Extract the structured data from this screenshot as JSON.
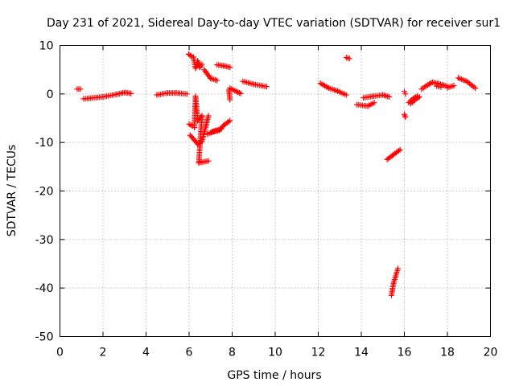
{
  "chart_data": {
    "type": "scatter",
    "title": "Day 231 of 2021, Sidereal Day-to-day VTEC variation (SDTVAR) for receiver sur1",
    "xlabel": "GPS time / hours",
    "ylabel": "SDTVAR / TECUs",
    "xlim": [
      0,
      20
    ],
    "ylim": [
      -50,
      10
    ],
    "xticks": [
      0,
      2,
      4,
      6,
      8,
      10,
      12,
      14,
      16,
      18,
      20
    ],
    "yticks": [
      10,
      0,
      -10,
      -20,
      -30,
      -40,
      -50
    ],
    "grid": true,
    "marker": "+",
    "marker_color": "#ff0000",
    "segments": [
      {
        "x": [
          0.8,
          0.95
        ],
        "y": [
          1.0,
          1.0
        ]
      },
      {
        "x": [
          1.1,
          2.0,
          2.6,
          3.0,
          3.3
        ],
        "y": [
          -1.0,
          -0.6,
          -0.1,
          0.3,
          0.1
        ]
      },
      {
        "x": [
          4.5,
          5.0,
          5.4,
          5.9
        ],
        "y": [
          -0.2,
          0.2,
          0.2,
          0.0
        ]
      },
      {
        "x": [
          5.98,
          6.1,
          6.2,
          6.3,
          6.4,
          6.5,
          6.6
        ],
        "y": [
          8.2,
          7.8,
          7.6,
          5.3,
          6.8,
          5.5,
          6.1
        ]
      },
      {
        "x": [
          6.0,
          6.15,
          6.25,
          6.3,
          6.4,
          6.6,
          6.45,
          6.9
        ],
        "y": [
          -6.2,
          -6.6,
          -6.9,
          -0.5,
          -5.5,
          -4.5,
          -14.2,
          -13.8
        ]
      },
      {
        "x": [
          6.05,
          6.4,
          6.6,
          6.9
        ],
        "y": [
          -8.5,
          -10.3,
          -9.8,
          -4.5
        ]
      },
      {
        "x": [
          6.7,
          7.0,
          7.3
        ],
        "y": [
          5.0,
          3.2,
          2.8
        ]
      },
      {
        "x": [
          6.85,
          7.1,
          7.4,
          7.6,
          7.9
        ],
        "y": [
          -8.3,
          -7.8,
          -7.5,
          -6.5,
          -5.5
        ]
      },
      {
        "x": [
          7.0,
          7.2,
          7.5
        ],
        "y": [
          -8.0,
          -7.6,
          -7.2
        ]
      },
      {
        "x": [
          7.3,
          7.6,
          7.9
        ],
        "y": [
          6.0,
          5.8,
          5.5
        ]
      },
      {
        "x": [
          7.85,
          7.9
        ],
        "y": [
          0.8,
          -1.2
        ]
      },
      {
        "x": [
          7.9,
          8.2,
          8.4
        ],
        "y": [
          1.2,
          0.5,
          0.1
        ]
      },
      {
        "x": [
          8.5,
          9.0,
          9.6
        ],
        "y": [
          2.6,
          2.0,
          1.5
        ]
      },
      {
        "x": [
          12.1,
          12.5,
          12.9,
          13.3
        ],
        "y": [
          2.2,
          1.2,
          0.6,
          -0.2
        ]
      },
      {
        "x": [
          13.3,
          13.45
        ],
        "y": [
          7.5,
          7.3
        ]
      },
      {
        "x": [
          13.8,
          14.3,
          14.6
        ],
        "y": [
          -2.2,
          -2.5,
          -1.8
        ]
      },
      {
        "x": [
          14.1,
          14.5,
          15.0,
          15.3
        ],
        "y": [
          -0.8,
          -0.5,
          -0.2,
          -0.6
        ]
      },
      {
        "x": [
          15.2,
          15.5,
          15.8
        ],
        "y": [
          -13.5,
          -12.5,
          -11.5
        ]
      },
      {
        "x": [
          15.4,
          15.5,
          15.6,
          15.7
        ],
        "y": [
          -41.5,
          -39.0,
          -37.5,
          -36.0
        ]
      },
      {
        "x": [
          16.0,
          16.05
        ],
        "y": [
          0.5,
          0.0
        ]
      },
      {
        "x": [
          16.0,
          16.05
        ],
        "y": [
          -4.2,
          -4.8
        ]
      },
      {
        "x": [
          16.2,
          16.4,
          16.6
        ],
        "y": [
          -1.8,
          -1.0,
          -0.4
        ]
      },
      {
        "x": [
          16.3,
          16.5,
          16.7
        ],
        "y": [
          -2.0,
          -1.2,
          -0.6
        ]
      },
      {
        "x": [
          16.8,
          17.1,
          17.3,
          17.6,
          18.0
        ],
        "y": [
          1.0,
          1.9,
          2.4,
          2.1,
          1.6
        ]
      },
      {
        "x": [
          17.5,
          17.7
        ],
        "y": [
          1.6,
          1.4
        ]
      },
      {
        "x": [
          18.0,
          18.3
        ],
        "y": [
          1.3,
          1.7
        ]
      },
      {
        "x": [
          18.5,
          18.9,
          19.3
        ],
        "y": [
          3.3,
          2.6,
          1.2
        ]
      }
    ]
  }
}
